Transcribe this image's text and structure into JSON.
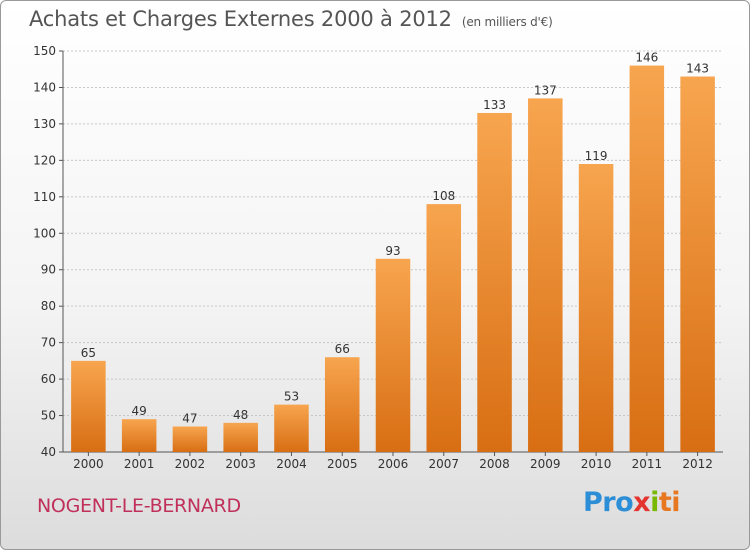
{
  "title": "Achats et Charges Externes 2000 à 2012",
  "unit_label": "(en milliers d'€)",
  "commune": "NOGENT-LE-BERNARD",
  "logo": {
    "text": "Proxiti",
    "parts": [
      "Pro",
      "x",
      "i",
      "ti"
    ]
  },
  "colors": {
    "bar_top": "#f7a54f",
    "bar_bottom": "#d86e13",
    "grid": "#c8c8c8",
    "title": "#555555",
    "commune": "#c0305a"
  },
  "chart_data": {
    "type": "bar",
    "title": "Achats et Charges Externes 2000 à 2012",
    "xlabel": "",
    "ylabel": "",
    "categories": [
      "2000",
      "2001",
      "2002",
      "2003",
      "2004",
      "2005",
      "2006",
      "2007",
      "2008",
      "2009",
      "2010",
      "2011",
      "2012"
    ],
    "values": [
      65,
      49,
      47,
      48,
      53,
      66,
      93,
      108,
      133,
      137,
      119,
      146,
      143
    ],
    "ylim": [
      40,
      150
    ],
    "yticks": [
      40,
      50,
      60,
      70,
      80,
      90,
      100,
      110,
      120,
      130,
      140,
      150
    ],
    "grid": true
  }
}
